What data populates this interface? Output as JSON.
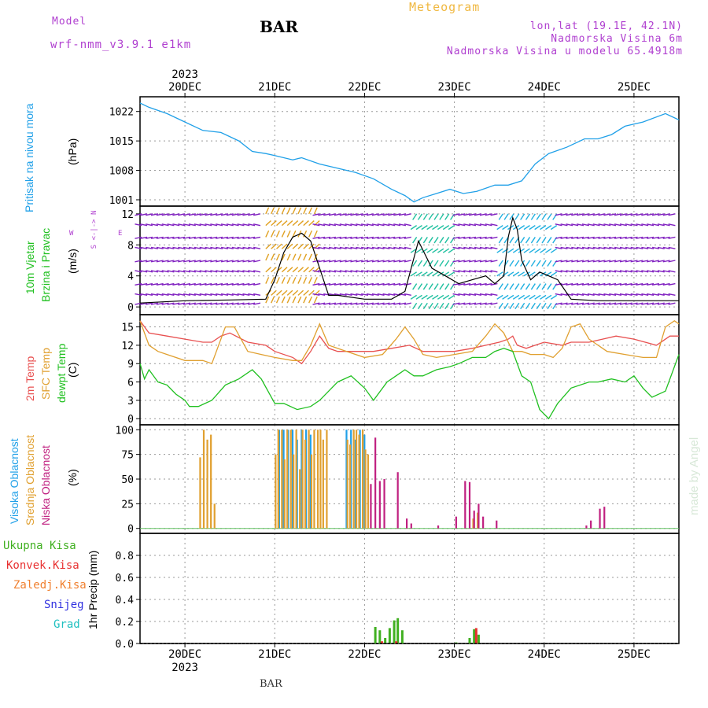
{
  "header": {
    "model_label": "Model",
    "model_name": "wrf-nmm_v3.9.1 e1km",
    "title": "BAR",
    "subtitle": "Meteogram",
    "lonlat": "lon,lat (19.1E, 42.1N)",
    "elevation": "Nadmorska Visina 6m",
    "model_elevation": "Nadmorska Visina u modelu 65.4918m"
  },
  "footer": {
    "station": "BAR",
    "watermark": "made by Angel"
  },
  "colors": {
    "pressure": "#20a0e8",
    "temp2m": "#e85050",
    "sfc": "#e0a030",
    "dewpt": "#20c020",
    "high_cloud": "#20a0e8",
    "mid_cloud": "#e0a030",
    "low_cloud": "#c02080",
    "total_precip": "#40b020",
    "conv_precip": "#e83030",
    "frz_precip": "#f08030",
    "snow": "#3030e0",
    "grad": "#20c0c0",
    "label_purple": "#b040d0"
  },
  "chart_data": [
    {
      "type": "line",
      "title": "Pritisak na nivou mora",
      "ylabel": "(hPa)",
      "x_unit": "days since 2023-12-20 00UTC",
      "xlim": [
        -0.5,
        5.5
      ],
      "ylim": [
        999.5,
        1025.5
      ],
      "yticks": [
        1001,
        1008,
        1015,
        1022
      ],
      "series": [
        {
          "name": "Pritisak na nivou mora",
          "x": [
            -0.5,
            -0.4,
            -0.2,
            0,
            0.2,
            0.4,
            0.6,
            0.75,
            0.9,
            1.0,
            1.2,
            1.3,
            1.5,
            1.7,
            1.9,
            2.1,
            2.3,
            2.45,
            2.55,
            2.65,
            2.8,
            2.95,
            3.1,
            3.25,
            3.45,
            3.6,
            3.75,
            3.9,
            4.05,
            4.25,
            4.45,
            4.6,
            4.75,
            4.9,
            5.1,
            5.35,
            5.5
          ],
          "y": [
            1024.0,
            1023.0,
            1021.5,
            1019.5,
            1017.5,
            1017.0,
            1015.0,
            1012.5,
            1012.0,
            1011.5,
            1010.5,
            1011.0,
            1009.5,
            1008.5,
            1007.5,
            1006.0,
            1003.5,
            1002.0,
            1000.5,
            1001.5,
            1002.5,
            1003.5,
            1002.5,
            1003.0,
            1004.5,
            1004.5,
            1005.5,
            1009.5,
            1012.0,
            1013.5,
            1015.5,
            1015.5,
            1016.5,
            1018.5,
            1019.5,
            1021.5,
            1020.0
          ]
        }
      ]
    },
    {
      "type": "line",
      "title": "10m Vjetar",
      "subtitle": "Brzina i Pravac",
      "ylabel": "(m/s)",
      "compass": {
        "n": "N",
        "s": "S",
        "e": "E",
        "w": "W"
      },
      "xlim": [
        -0.5,
        5.5
      ],
      "ylim": [
        -1,
        13
      ],
      "yticks": [
        0,
        4,
        8,
        12
      ],
      "series": [
        {
          "name": "Brzina",
          "x": [
            -0.5,
            0,
            0.5,
            0.9,
            1.0,
            1.1,
            1.2,
            1.3,
            1.4,
            1.5,
            1.6,
            1.7,
            2.0,
            2.3,
            2.45,
            2.6,
            2.75,
            2.9,
            3.05,
            3.2,
            3.35,
            3.45,
            3.55,
            3.6,
            3.65,
            3.7,
            3.75,
            3.85,
            3.95,
            4.05,
            4.15,
            4.3,
            4.6,
            5.0,
            5.5
          ],
          "y": [
            0.5,
            0.8,
            0.9,
            1.0,
            3.5,
            7.0,
            9.0,
            9.5,
            8.5,
            5.0,
            1.5,
            1.5,
            1.0,
            1.0,
            2.0,
            8.5,
            5.0,
            4.0,
            3.0,
            3.5,
            4.0,
            3.0,
            4.0,
            9.0,
            11.5,
            10.0,
            6.0,
            3.5,
            4.5,
            4.0,
            3.5,
            1.0,
            0.8,
            0.8,
            0.8
          ]
        }
      ],
      "barb_color_zones": [
        {
          "x0": -0.5,
          "x1": 0.85,
          "color": "#8020c0"
        },
        {
          "x0": 0.85,
          "x1": 1.5,
          "color": "#e0a020"
        },
        {
          "x0": 1.5,
          "x1": 2.55,
          "color": "#8020c0"
        },
        {
          "x0": 2.55,
          "x1": 3.05,
          "color": "#20c0a0"
        },
        {
          "x0": 3.05,
          "x1": 3.5,
          "color": "#8020c0"
        },
        {
          "x0": 3.5,
          "x1": 4.2,
          "color": "#20b0e0"
        },
        {
          "x0": 4.2,
          "x1": 5.5,
          "color": "#8020c0"
        }
      ]
    },
    {
      "type": "line",
      "titles": [
        "2m Temp",
        "SFC Temp",
        "dewpt Temp"
      ],
      "ylabel": "(C)",
      "xlim": [
        -0.5,
        5.5
      ],
      "ylim": [
        -1,
        17
      ],
      "yticks": [
        0,
        3,
        6,
        9,
        12,
        15
      ],
      "series": [
        {
          "name": "2m Temp",
          "x": [
            -0.5,
            -0.4,
            -0.2,
            0,
            0.2,
            0.3,
            0.4,
            0.5,
            0.7,
            0.9,
            1.0,
            1.2,
            1.3,
            1.4,
            1.5,
            1.6,
            1.7,
            1.9,
            2.1,
            2.3,
            2.5,
            2.65,
            2.8,
            3.0,
            3.2,
            3.35,
            3.5,
            3.6,
            3.65,
            3.7,
            3.8,
            3.9,
            4.0,
            4.2,
            4.3,
            4.5,
            4.65,
            4.8,
            5.0,
            5.25,
            5.4,
            5.5
          ],
          "y": [
            16.0,
            14.0,
            13.5,
            13.0,
            12.5,
            12.5,
            13.5,
            14.0,
            12.5,
            12.0,
            11.0,
            10.0,
            9.0,
            11.0,
            13.5,
            11.5,
            11.0,
            11.0,
            11.0,
            11.5,
            12.0,
            11.0,
            11.0,
            11.0,
            11.5,
            12.0,
            12.5,
            13.0,
            13.5,
            12.0,
            11.5,
            12.0,
            12.5,
            12.0,
            12.5,
            12.5,
            13.0,
            13.5,
            13.0,
            12.0,
            13.5,
            13.5
          ]
        },
        {
          "name": "SFC Temp",
          "x": [
            -0.5,
            -0.4,
            -0.3,
            -0.2,
            0,
            0.2,
            0.3,
            0.45,
            0.55,
            0.7,
            0.85,
            1.0,
            1.2,
            1.3,
            1.4,
            1.5,
            1.6,
            1.8,
            2.0,
            2.2,
            2.35,
            2.45,
            2.55,
            2.65,
            2.8,
            3.0,
            3.2,
            3.35,
            3.45,
            3.55,
            3.65,
            3.75,
            3.85,
            4.0,
            4.1,
            4.2,
            4.3,
            4.4,
            4.5,
            4.7,
            4.9,
            5.1,
            5.25,
            5.35,
            5.45,
            5.5
          ],
          "y": [
            16.0,
            12.0,
            11.0,
            10.5,
            9.5,
            9.5,
            9.0,
            15.0,
            15.0,
            11.0,
            10.5,
            10.0,
            9.5,
            9.5,
            12.0,
            15.5,
            12.0,
            11.0,
            10.0,
            10.5,
            13.0,
            15.0,
            13.0,
            10.5,
            10.0,
            10.5,
            11.0,
            13.5,
            15.5,
            14.0,
            11.0,
            11.0,
            10.5,
            10.5,
            10.0,
            11.5,
            15.0,
            15.5,
            13.0,
            11.0,
            10.5,
            10.0,
            10.0,
            15.0,
            16.0,
            15.5
          ]
        },
        {
          "name": "dewpt Temp",
          "x": [
            -0.5,
            -0.45,
            -0.4,
            -0.3,
            -0.2,
            -0.1,
            0,
            0.05,
            0.15,
            0.3,
            0.45,
            0.6,
            0.75,
            0.85,
            1.0,
            1.1,
            1.25,
            1.4,
            1.5,
            1.6,
            1.7,
            1.85,
            2.0,
            2.1,
            2.25,
            2.35,
            2.45,
            2.55,
            2.65,
            2.8,
            2.95,
            3.05,
            3.2,
            3.35,
            3.45,
            3.55,
            3.65,
            3.75,
            3.85,
            3.95,
            4.05,
            4.15,
            4.3,
            4.5,
            4.6,
            4.75,
            4.9,
            5.0,
            5.1,
            5.2,
            5.35,
            5.5
          ],
          "y": [
            9.0,
            6.5,
            8.0,
            6.0,
            5.5,
            4.0,
            3.0,
            2.0,
            2.0,
            3.0,
            5.5,
            6.5,
            8.0,
            6.5,
            2.5,
            2.5,
            1.5,
            2.0,
            3.0,
            4.5,
            6.0,
            7.0,
            5.0,
            3.0,
            6.0,
            7.0,
            8.0,
            7.0,
            7.0,
            8.0,
            8.5,
            9.0,
            10.0,
            10.0,
            11.0,
            11.5,
            11.0,
            7.0,
            6.0,
            1.5,
            0.0,
            2.5,
            5.0,
            6.0,
            6.0,
            6.5,
            6.0,
            7.0,
            5.0,
            3.5,
            4.5,
            10.5
          ]
        }
      ]
    },
    {
      "type": "bar",
      "titles": [
        "Visoka Oblacnost",
        "Srednja Oblacnost",
        "Niska Oblacnost"
      ],
      "ylabel": "(%)",
      "xlim": [
        -0.5,
        5.5
      ],
      "ylim": [
        -5,
        105
      ],
      "yticks": [
        0,
        25,
        50,
        75,
        100
      ],
      "series": [
        {
          "name": "Visoka Oblacnost",
          "x": [
            1.05,
            1.1,
            1.15,
            1.2,
            1.25,
            1.3,
            1.35,
            1.4,
            1.8,
            1.85,
            1.9,
            1.95,
            2.0
          ],
          "values": [
            100,
            100,
            100,
            100,
            90,
            100,
            100,
            95,
            100,
            100,
            90,
            100,
            95
          ]
        },
        {
          "name": "Srednja Oblacnost",
          "x": [
            0.16,
            0.2,
            0.24,
            0.28,
            0.32,
            1.0,
            1.03,
            1.07,
            1.1,
            1.13,
            1.17,
            1.2,
            1.23,
            1.27,
            1.3,
            1.33,
            1.37,
            1.4,
            1.43,
            1.47,
            1.5,
            1.53,
            1.57,
            1.8,
            1.83,
            1.87,
            1.9,
            1.93,
            1.97,
            2.0,
            2.03,
            3.2,
            3.25
          ],
          "values": [
            72,
            100,
            90,
            95,
            25,
            75,
            100,
            100,
            70,
            100,
            100,
            75,
            100,
            60,
            100,
            90,
            100,
            75,
            100,
            100,
            100,
            90,
            100,
            90,
            85,
            100,
            100,
            95,
            100,
            80,
            75,
            10,
            16
          ]
        },
        {
          "name": "Niska Oblacnost",
          "x": [
            2.05,
            2.1,
            2.15,
            2.2,
            2.35,
            2.45,
            2.5,
            2.8,
            3.0,
            3.1,
            3.15,
            3.2,
            3.25,
            3.3,
            3.45,
            4.45,
            4.5,
            4.6,
            4.65
          ],
          "values": [
            45,
            92,
            48,
            50,
            57,
            10,
            5,
            3,
            12,
            48,
            47,
            18,
            25,
            12,
            8,
            3,
            8,
            20,
            22
          ]
        }
      ]
    },
    {
      "type": "bar",
      "titles": [
        "Ukupna Kisa",
        "Konvek.Kisa",
        "Zaledj.Kisa",
        "Snijeg",
        "Grad"
      ],
      "ylabel": "1hr Precip (mm)",
      "xlim": [
        -0.5,
        5.5
      ],
      "ylim": [
        0,
        1.0
      ],
      "yticks": [
        0,
        0.2,
        0.4,
        0.6,
        0.8
      ],
      "series": [
        {
          "name": "Ukupna Kisa",
          "x": [
            2.12,
            2.17,
            2.23,
            2.28,
            2.33,
            2.37,
            2.42,
            3.02,
            3.17,
            3.22,
            3.27
          ],
          "values": [
            0.15,
            0.12,
            0.05,
            0.14,
            0.21,
            0.23,
            0.12,
            0.01,
            0.05,
            0.13,
            0.08
          ]
        },
        {
          "name": "Konvek.Kisa",
          "x": [
            2.18,
            2.34,
            3.23
          ],
          "values": [
            0.02,
            0.02,
            0.14
          ]
        }
      ]
    }
  ],
  "xaxis": {
    "top_year": "2023",
    "bottom_year": "2023",
    "ticks": [
      "20DEC",
      "21DEC",
      "22DEC",
      "23DEC",
      "24DEC",
      "25DEC"
    ]
  }
}
